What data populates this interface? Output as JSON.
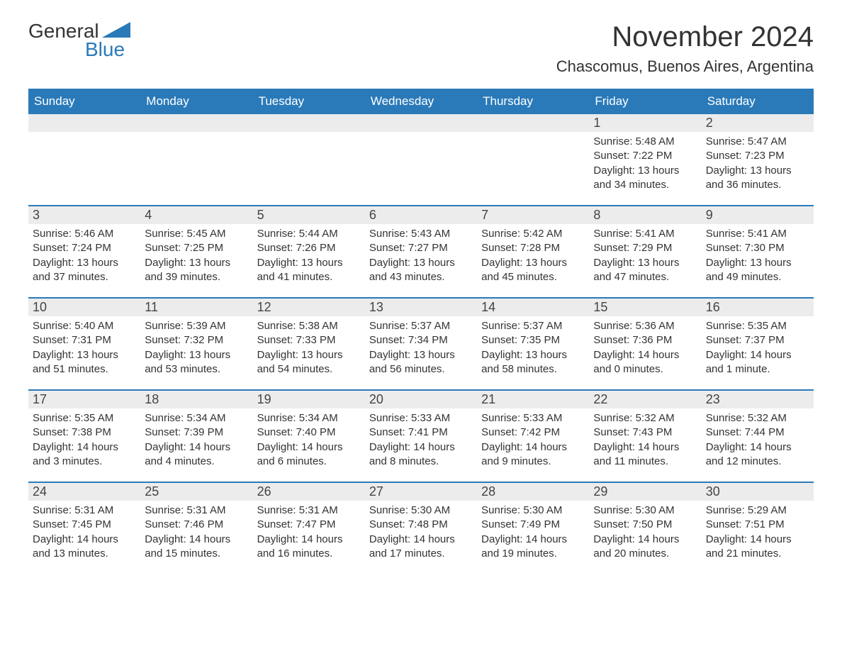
{
  "brand": {
    "logo_text_1": "General",
    "logo_text_2": "Blue",
    "logo_color_text": "#333333",
    "logo_color_blue": "#2a7ab9",
    "logo_shape_color": "#2a7ab9"
  },
  "header": {
    "month_title": "November 2024",
    "location": "Chascomus, Buenos Aires, Argentina",
    "title_fontsize": 40,
    "location_fontsize": 22
  },
  "palette": {
    "header_bg": "#2a7ab9",
    "header_text": "#ffffff",
    "daynum_bg": "#ececec",
    "body_bg": "#ffffff",
    "border": "#2a7ab9",
    "text": "#333333"
  },
  "calendar": {
    "type": "table",
    "columns": [
      "Sunday",
      "Monday",
      "Tuesday",
      "Wednesday",
      "Thursday",
      "Friday",
      "Saturday"
    ],
    "col_fontsize": 17,
    "daynum_fontsize": 18,
    "body_fontsize": 15,
    "weeks": [
      [
        null,
        null,
        null,
        null,
        null,
        {
          "n": "1",
          "sunrise": "Sunrise: 5:48 AM",
          "sunset": "Sunset: 7:22 PM",
          "day1": "Daylight: 13 hours",
          "day2": "and 34 minutes."
        },
        {
          "n": "2",
          "sunrise": "Sunrise: 5:47 AM",
          "sunset": "Sunset: 7:23 PM",
          "day1": "Daylight: 13 hours",
          "day2": "and 36 minutes."
        }
      ],
      [
        {
          "n": "3",
          "sunrise": "Sunrise: 5:46 AM",
          "sunset": "Sunset: 7:24 PM",
          "day1": "Daylight: 13 hours",
          "day2": "and 37 minutes."
        },
        {
          "n": "4",
          "sunrise": "Sunrise: 5:45 AM",
          "sunset": "Sunset: 7:25 PM",
          "day1": "Daylight: 13 hours",
          "day2": "and 39 minutes."
        },
        {
          "n": "5",
          "sunrise": "Sunrise: 5:44 AM",
          "sunset": "Sunset: 7:26 PM",
          "day1": "Daylight: 13 hours",
          "day2": "and 41 minutes."
        },
        {
          "n": "6",
          "sunrise": "Sunrise: 5:43 AM",
          "sunset": "Sunset: 7:27 PM",
          "day1": "Daylight: 13 hours",
          "day2": "and 43 minutes."
        },
        {
          "n": "7",
          "sunrise": "Sunrise: 5:42 AM",
          "sunset": "Sunset: 7:28 PM",
          "day1": "Daylight: 13 hours",
          "day2": "and 45 minutes."
        },
        {
          "n": "8",
          "sunrise": "Sunrise: 5:41 AM",
          "sunset": "Sunset: 7:29 PM",
          "day1": "Daylight: 13 hours",
          "day2": "and 47 minutes."
        },
        {
          "n": "9",
          "sunrise": "Sunrise: 5:41 AM",
          "sunset": "Sunset: 7:30 PM",
          "day1": "Daylight: 13 hours",
          "day2": "and 49 minutes."
        }
      ],
      [
        {
          "n": "10",
          "sunrise": "Sunrise: 5:40 AM",
          "sunset": "Sunset: 7:31 PM",
          "day1": "Daylight: 13 hours",
          "day2": "and 51 minutes."
        },
        {
          "n": "11",
          "sunrise": "Sunrise: 5:39 AM",
          "sunset": "Sunset: 7:32 PM",
          "day1": "Daylight: 13 hours",
          "day2": "and 53 minutes."
        },
        {
          "n": "12",
          "sunrise": "Sunrise: 5:38 AM",
          "sunset": "Sunset: 7:33 PM",
          "day1": "Daylight: 13 hours",
          "day2": "and 54 minutes."
        },
        {
          "n": "13",
          "sunrise": "Sunrise: 5:37 AM",
          "sunset": "Sunset: 7:34 PM",
          "day1": "Daylight: 13 hours",
          "day2": "and 56 minutes."
        },
        {
          "n": "14",
          "sunrise": "Sunrise: 5:37 AM",
          "sunset": "Sunset: 7:35 PM",
          "day1": "Daylight: 13 hours",
          "day2": "and 58 minutes."
        },
        {
          "n": "15",
          "sunrise": "Sunrise: 5:36 AM",
          "sunset": "Sunset: 7:36 PM",
          "day1": "Daylight: 14 hours",
          "day2": "and 0 minutes."
        },
        {
          "n": "16",
          "sunrise": "Sunrise: 5:35 AM",
          "sunset": "Sunset: 7:37 PM",
          "day1": "Daylight: 14 hours",
          "day2": "and 1 minute."
        }
      ],
      [
        {
          "n": "17",
          "sunrise": "Sunrise: 5:35 AM",
          "sunset": "Sunset: 7:38 PM",
          "day1": "Daylight: 14 hours",
          "day2": "and 3 minutes."
        },
        {
          "n": "18",
          "sunrise": "Sunrise: 5:34 AM",
          "sunset": "Sunset: 7:39 PM",
          "day1": "Daylight: 14 hours",
          "day2": "and 4 minutes."
        },
        {
          "n": "19",
          "sunrise": "Sunrise: 5:34 AM",
          "sunset": "Sunset: 7:40 PM",
          "day1": "Daylight: 14 hours",
          "day2": "and 6 minutes."
        },
        {
          "n": "20",
          "sunrise": "Sunrise: 5:33 AM",
          "sunset": "Sunset: 7:41 PM",
          "day1": "Daylight: 14 hours",
          "day2": "and 8 minutes."
        },
        {
          "n": "21",
          "sunrise": "Sunrise: 5:33 AM",
          "sunset": "Sunset: 7:42 PM",
          "day1": "Daylight: 14 hours",
          "day2": "and 9 minutes."
        },
        {
          "n": "22",
          "sunrise": "Sunrise: 5:32 AM",
          "sunset": "Sunset: 7:43 PM",
          "day1": "Daylight: 14 hours",
          "day2": "and 11 minutes."
        },
        {
          "n": "23",
          "sunrise": "Sunrise: 5:32 AM",
          "sunset": "Sunset: 7:44 PM",
          "day1": "Daylight: 14 hours",
          "day2": "and 12 minutes."
        }
      ],
      [
        {
          "n": "24",
          "sunrise": "Sunrise: 5:31 AM",
          "sunset": "Sunset: 7:45 PM",
          "day1": "Daylight: 14 hours",
          "day2": "and 13 minutes."
        },
        {
          "n": "25",
          "sunrise": "Sunrise: 5:31 AM",
          "sunset": "Sunset: 7:46 PM",
          "day1": "Daylight: 14 hours",
          "day2": "and 15 minutes."
        },
        {
          "n": "26",
          "sunrise": "Sunrise: 5:31 AM",
          "sunset": "Sunset: 7:47 PM",
          "day1": "Daylight: 14 hours",
          "day2": "and 16 minutes."
        },
        {
          "n": "27",
          "sunrise": "Sunrise: 5:30 AM",
          "sunset": "Sunset: 7:48 PM",
          "day1": "Daylight: 14 hours",
          "day2": "and 17 minutes."
        },
        {
          "n": "28",
          "sunrise": "Sunrise: 5:30 AM",
          "sunset": "Sunset: 7:49 PM",
          "day1": "Daylight: 14 hours",
          "day2": "and 19 minutes."
        },
        {
          "n": "29",
          "sunrise": "Sunrise: 5:30 AM",
          "sunset": "Sunset: 7:50 PM",
          "day1": "Daylight: 14 hours",
          "day2": "and 20 minutes."
        },
        {
          "n": "30",
          "sunrise": "Sunrise: 5:29 AM",
          "sunset": "Sunset: 7:51 PM",
          "day1": "Daylight: 14 hours",
          "day2": "and 21 minutes."
        }
      ]
    ]
  }
}
